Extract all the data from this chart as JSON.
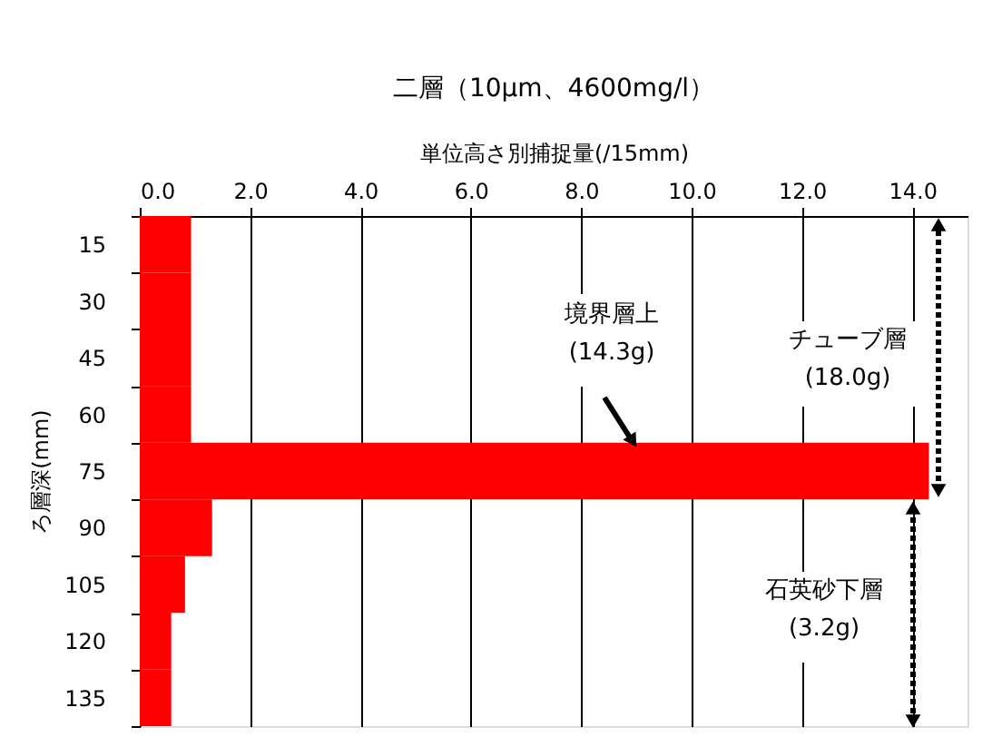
{
  "chart_data": {
    "type": "bar",
    "orientation": "horizontal",
    "title": "二層（10μm、4600mg/l）",
    "xlabel": "単位高さ別捕捉量(/15mm)",
    "ylabel": "ろ層深(mm)",
    "categories": [
      "15",
      "30",
      "45",
      "60",
      "75",
      "90",
      "105",
      "120",
      "135"
    ],
    "values": [
      0.93,
      0.93,
      0.93,
      0.93,
      14.3,
      1.31,
      0.82,
      0.57,
      0.57
    ],
    "color": "#ff0000",
    "xlim": [
      0,
      15
    ],
    "xticks": [
      {
        "value": 0,
        "label": "0.0"
      },
      {
        "value": 2,
        "label": "2.0"
      },
      {
        "value": 4,
        "label": "4.0"
      },
      {
        "value": 6,
        "label": "6.0"
      },
      {
        "value": 8,
        "label": "8.0"
      },
      {
        "value": 10,
        "label": "10.0"
      },
      {
        "value": 12,
        "label": "12.0"
      },
      {
        "value": 14,
        "label": "14.0"
      }
    ],
    "grid": "x",
    "annotations": [
      "境界層上\n(14.3g)",
      "チューブ層\n(18.0g)",
      "石英砂下層\n(3.2g)"
    ]
  }
}
